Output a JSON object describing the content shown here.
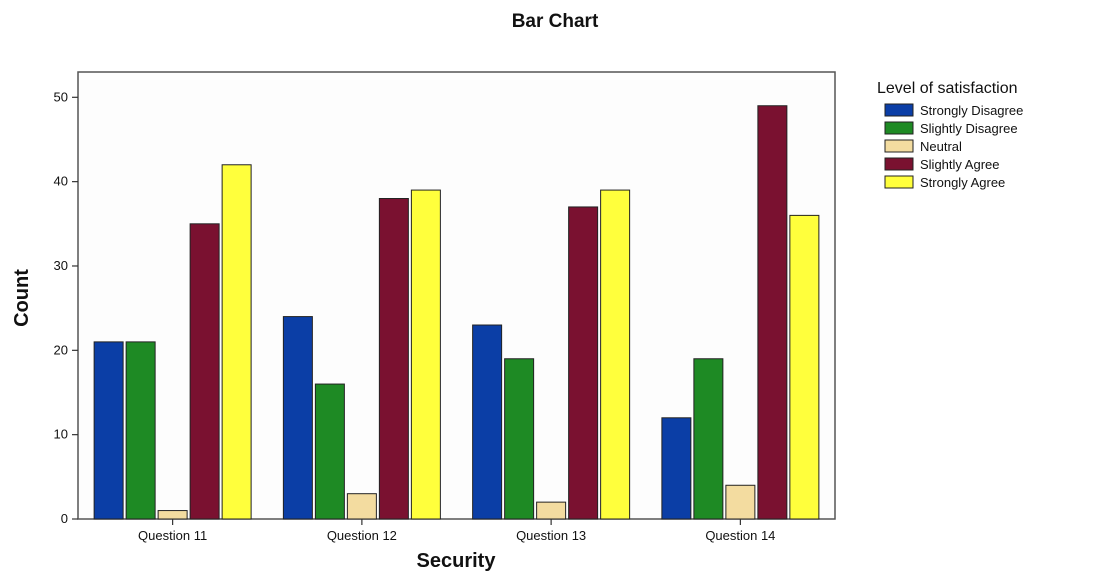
{
  "chart_data": {
    "type": "bar",
    "title": "Bar Chart",
    "xlabel": "Security",
    "ylabel": "Count",
    "categories": [
      "Question 11",
      "Question 12",
      "Question 13",
      "Question 14"
    ],
    "ylim": [
      0,
      53
    ],
    "yticks": [
      0,
      10,
      20,
      30,
      40,
      50
    ],
    "grid": false,
    "legend": {
      "title": "Level of satisfaction",
      "placement": "right"
    },
    "series": [
      {
        "name": "Strongly Disagree",
        "color": "#0b3ea6",
        "values": [
          21,
          24,
          23,
          12
        ]
      },
      {
        "name": "Slightly Disagree",
        "color": "#1e8a24",
        "values": [
          21,
          16,
          19,
          19
        ]
      },
      {
        "name": "Neutral",
        "color": "#f3dca0",
        "values": [
          1,
          3,
          2,
          4
        ]
      },
      {
        "name": "Slightly Agree",
        "color": "#7a1130",
        "values": [
          35,
          38,
          37,
          49
        ]
      },
      {
        "name": "Strongly Agree",
        "color": "#ffff3c",
        "values": [
          42,
          39,
          39,
          36
        ]
      }
    ]
  }
}
